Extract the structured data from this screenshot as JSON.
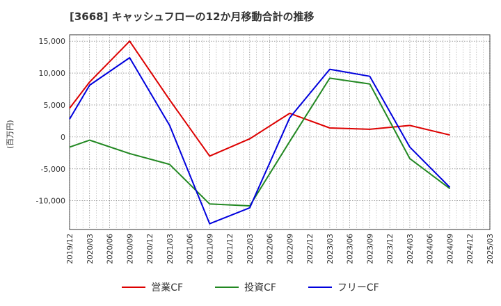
{
  "chart_data": {
    "type": "line",
    "title": "[3668]  キャッシュフローの12か月移動合計の推移",
    "ylabel": "(百万円)",
    "xlabel": "",
    "ylim": [
      -14500,
      16000
    ],
    "yticks": [
      15000,
      10000,
      5000,
      0,
      -5000,
      -10000
    ],
    "ytick_labels": [
      "15,000",
      "10,000",
      "5,000",
      "0",
      "-5,000",
      "-10,000"
    ],
    "x_tick_labels": [
      "2019/12",
      "2020/03",
      "2020/06",
      "2020/09",
      "2020/12",
      "2021/03",
      "2021/06",
      "2021/09",
      "2021/12",
      "2022/03",
      "2022/06",
      "2022/09",
      "2022/12",
      "2023/03",
      "2023/06",
      "2023/09",
      "2023/12",
      "2024/03",
      "2024/06",
      "2024/09",
      "2024/12",
      "2025/03"
    ],
    "grid": true,
    "series": [
      {
        "name": "営業CF",
        "color": "#dd0000",
        "x": [
          "2019/12",
          "2020/03",
          "2020/09",
          "2021/03",
          "2021/09",
          "2022/03",
          "2022/09",
          "2023/03",
          "2023/09",
          "2024/03",
          "2024/09"
        ],
        "values": [
          4500,
          8600,
          15000,
          5800,
          -3000,
          -300,
          3700,
          1400,
          1200,
          1800,
          300
        ]
      },
      {
        "name": "投資CF",
        "color": "#228822",
        "x": [
          "2019/12",
          "2020/03",
          "2020/09",
          "2021/03",
          "2021/09",
          "2022/03",
          "2022/09",
          "2023/03",
          "2023/09",
          "2024/03",
          "2024/09"
        ],
        "values": [
          -1600,
          -500,
          -2600,
          -4300,
          -10500,
          -10800,
          -700,
          9200,
          8300,
          -3400,
          -8100
        ]
      },
      {
        "name": "フリーCF",
        "color": "#0000dd",
        "x": [
          "2019/12",
          "2020/03",
          "2020/09",
          "2021/03",
          "2021/09",
          "2022/03",
          "2022/09",
          "2023/03",
          "2023/09",
          "2024/03",
          "2024/09"
        ],
        "values": [
          2800,
          8100,
          12400,
          1800,
          -13600,
          -11100,
          3000,
          10600,
          9500,
          -1600,
          -7900
        ]
      }
    ]
  }
}
